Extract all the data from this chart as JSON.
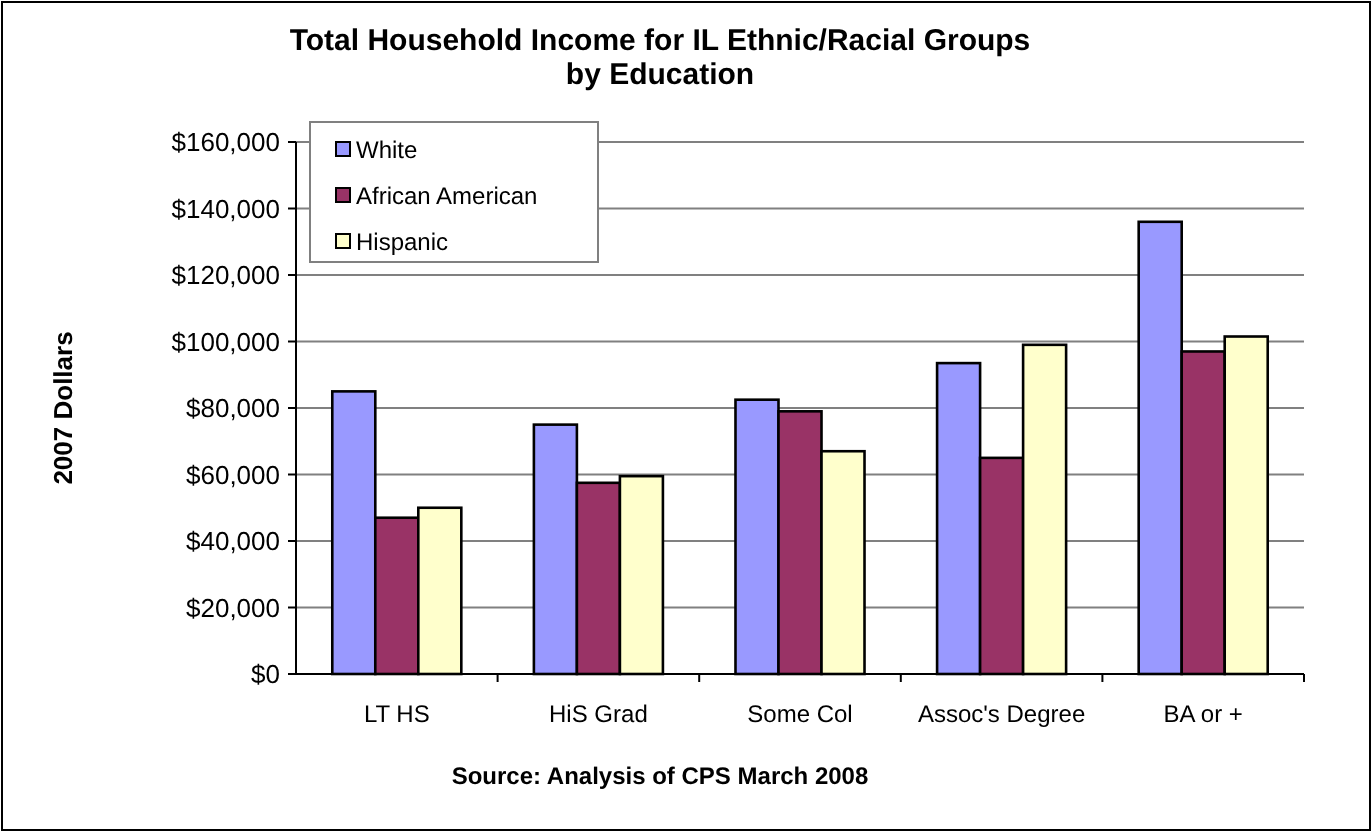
{
  "chart_data": {
    "type": "bar",
    "title": "Total Household Income for IL Ethnic/Racial Groups by Education",
    "ylabel": "2007 Dollars",
    "annotations": [
      "Source:  Analysis of CPS March 2008"
    ],
    "categories": [
      "LT HS",
      "HiS Grad",
      "Some Col",
      "Assoc's Degree",
      "BA or +"
    ],
    "series": [
      {
        "name": "White",
        "color": "#9999ff",
        "values": [
          85000,
          75000,
          82500,
          93500,
          136000
        ]
      },
      {
        "name": "African American",
        "color": "#993366",
        "values": [
          47000,
          57500,
          79000,
          65000,
          97000
        ]
      },
      {
        "name": "Hispanic",
        "color": "#ffffcc",
        "values": [
          50000,
          59500,
          67000,
          99000,
          101500
        ]
      }
    ],
    "ylim": [
      0,
      160000
    ],
    "yticks": [
      {
        "value": 0,
        "label": "$0"
      },
      {
        "value": 20000,
        "label": "$20,000"
      },
      {
        "value": 40000,
        "label": "$40,000"
      },
      {
        "value": 60000,
        "label": "$60,000"
      },
      {
        "value": 80000,
        "label": "$80,000"
      },
      {
        "value": 100000,
        "label": "$100,000"
      },
      {
        "value": 120000,
        "label": "$120,000"
      },
      {
        "value": 140000,
        "label": "$140,000"
      },
      {
        "value": 160000,
        "label": "$160,000"
      }
    ],
    "grid": "y",
    "legend": "top left"
  }
}
